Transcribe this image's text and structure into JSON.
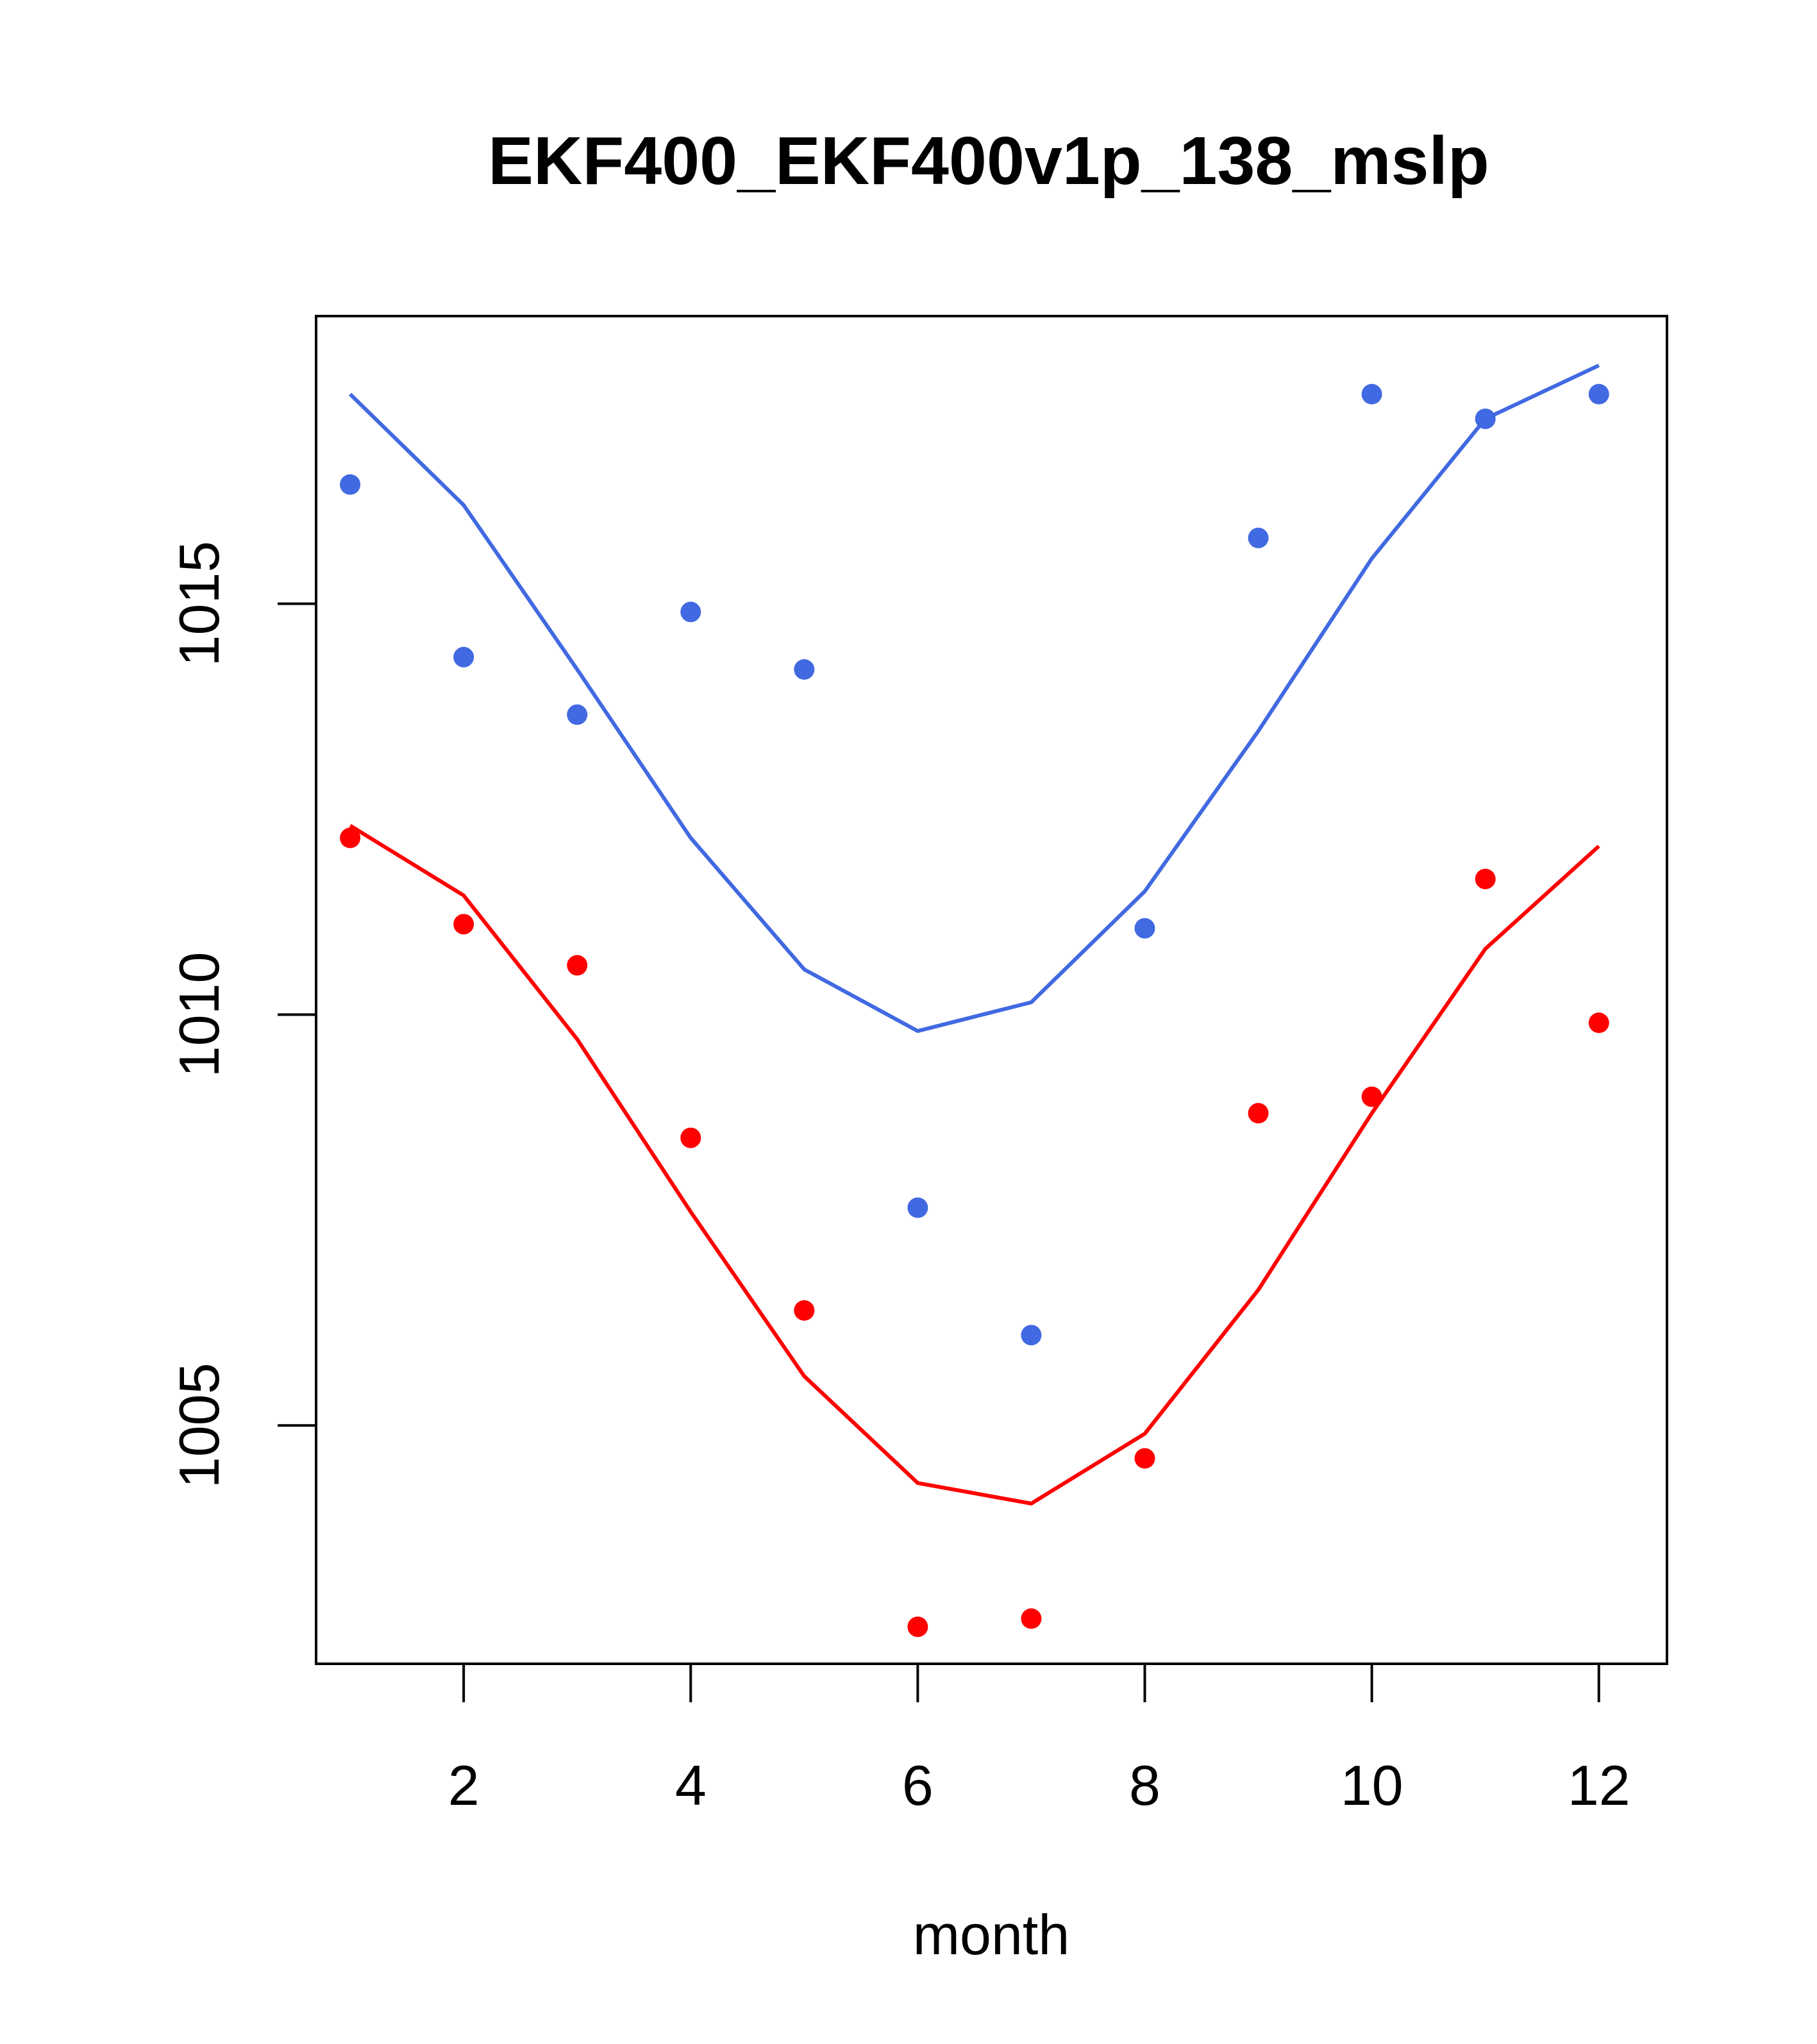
{
  "chart_data": {
    "type": "line",
    "title": "EKF400_EKF400v1p_138_mslp",
    "xlabel": "month",
    "ylabel": "",
    "xlim": [
      0.7,
      12.6
    ],
    "ylim": [
      1002.1,
      1018.5
    ],
    "x_ticks": [
      2,
      4,
      6,
      8,
      10,
      12
    ],
    "y_ticks": [
      1005,
      1010,
      1015
    ],
    "grid": false,
    "legend": "none",
    "x": [
      1,
      2,
      3,
      4,
      5,
      6,
      7,
      8,
      9,
      10,
      11,
      12
    ],
    "series": [
      {
        "color": "#4169E1",
        "line": [
          1017.55,
          1016.2,
          1014.2,
          1012.15,
          1010.55,
          1009.8,
          1010.15,
          1011.5,
          1013.45,
          1015.55,
          1017.25,
          1017.9
        ],
        "points": [
          1016.45,
          1014.35,
          1013.65,
          1014.9,
          1014.2,
          1007.65,
          1006.1,
          1011.05,
          1015.8,
          1017.55,
          1017.25,
          1017.55
        ]
      },
      {
        "color": "#FF0000",
        "line": [
          1012.3,
          1011.45,
          1009.7,
          1007.6,
          1005.6,
          1004.3,
          1004.05,
          1004.9,
          1006.65,
          1008.8,
          1010.8,
          1012.05
        ],
        "points": [
          1012.15,
          1011.1,
          1010.6,
          1008.5,
          1006.4,
          1002.55,
          1002.65,
          1004.6,
          1008.8,
          1009.0,
          1011.65,
          1009.9
        ]
      }
    ]
  }
}
